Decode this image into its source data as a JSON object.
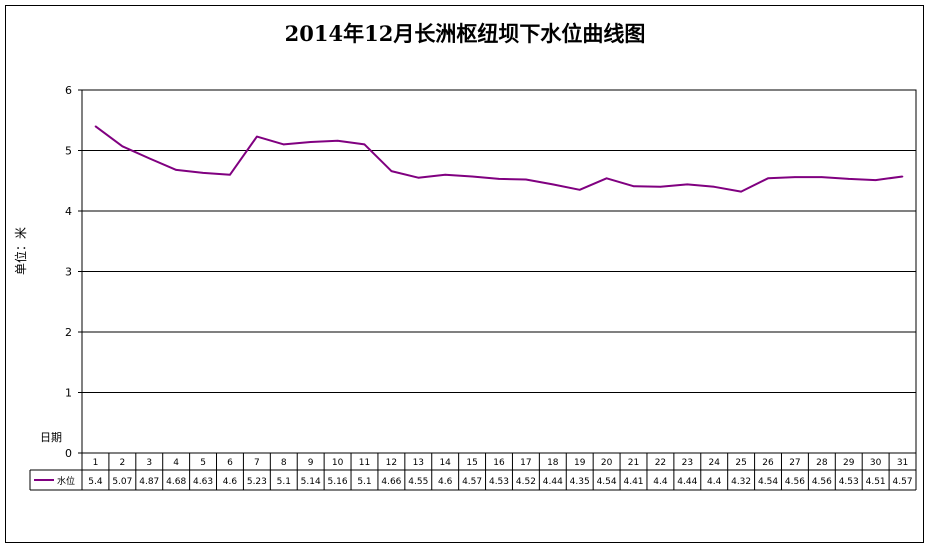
{
  "chart_data": {
    "type": "line",
    "title": "2014年12月长洲枢纽坝下水位曲线图",
    "ylabel": "单位：米",
    "xlabel": "日期",
    "ylim": [
      0,
      6
    ],
    "yticks": [
      "0",
      "1",
      "2",
      "3",
      "4",
      "5",
      "6"
    ],
    "grid": true,
    "categories": [
      "1",
      "2",
      "3",
      "4",
      "5",
      "6",
      "7",
      "8",
      "9",
      "10",
      "11",
      "12",
      "13",
      "14",
      "15",
      "16",
      "17",
      "18",
      "19",
      "20",
      "21",
      "22",
      "23",
      "24",
      "25",
      "26",
      "27",
      "28",
      "29",
      "30",
      "31"
    ],
    "series": [
      {
        "name": "水位",
        "color": "#800080",
        "values": [
          5.4,
          5.07,
          4.87,
          4.68,
          4.63,
          4.6,
          5.23,
          5.1,
          5.14,
          5.16,
          5.1,
          4.66,
          4.55,
          4.6,
          4.57,
          4.53,
          4.52,
          4.44,
          4.35,
          4.54,
          4.41,
          4.4,
          4.44,
          4.4,
          4.32,
          4.54,
          4.56,
          4.56,
          4.53,
          4.51,
          4.57
        ],
        "labels": [
          "5.4",
          "5.07",
          "4.87",
          "4.68",
          "4.63",
          "4.6",
          "5.23",
          "5.1",
          "5.14",
          "5.16",
          "5.1",
          "4.66",
          "4.55",
          "4.6",
          "4.57",
          "4.53",
          "4.52",
          "4.44",
          "4.35",
          "4.54",
          "4.41",
          "4.4",
          "4.44",
          "4.4",
          "4.32",
          "4.54",
          "4.56",
          "4.56",
          "4.53",
          "4.51",
          "4.57"
        ]
      }
    ],
    "legend": "data-table-left"
  }
}
